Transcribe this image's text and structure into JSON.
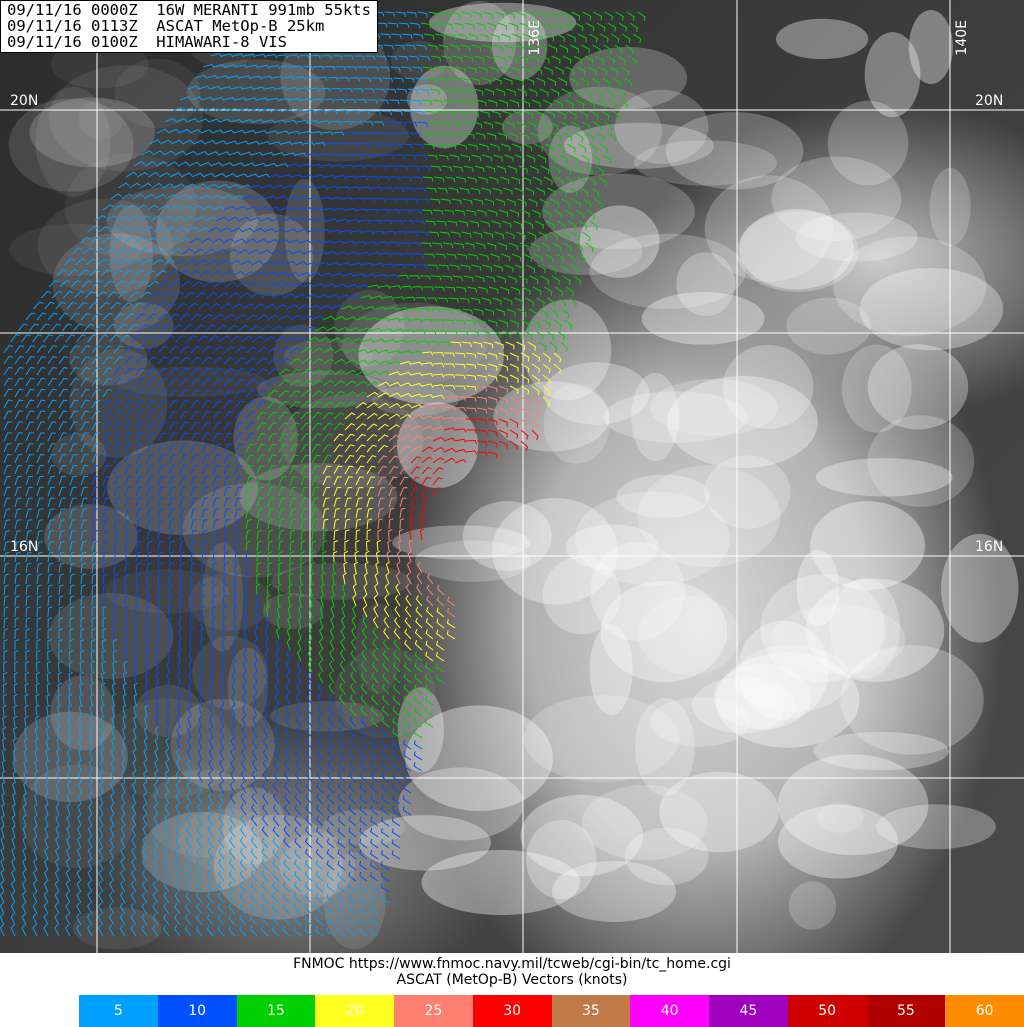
{
  "header": {
    "lines": [
      "09/11/16 0000Z  16W MERANTI 991mb 55kts",
      "09/11/16 0113Z  ASCAT MetOp-B 25km",
      "09/11/16 0100Z  HIMAWARI-8 VIS"
    ]
  },
  "grid": {
    "lat_labels": [
      "20N",
      "20N",
      "16N",
      "16N"
    ],
    "lon_labels": [
      "136E",
      "140E"
    ]
  },
  "footer": {
    "source": "FNMOC https://www.fnmoc.navy.mil/tcweb/cgi-bin/tc_home.cgi",
    "legend_title": "ASCAT (MetOp-B) Vectors (knots)"
  },
  "legend": [
    {
      "label": "5",
      "color": "#00a0ff"
    },
    {
      "label": "10",
      "color": "#0050ff"
    },
    {
      "label": "15",
      "color": "#00d000"
    },
    {
      "label": "20",
      "color": "#ffff20"
    },
    {
      "label": "25",
      "color": "#ff8070"
    },
    {
      "label": "30",
      "color": "#ff0000"
    },
    {
      "label": "35",
      "color": "#c07a48"
    },
    {
      "label": "40",
      "color": "#ff00ff"
    },
    {
      "label": "45",
      "color": "#a000c0"
    },
    {
      "label": "50",
      "color": "#d00000"
    },
    {
      "label": "55",
      "color": "#b00000"
    },
    {
      "label": "60",
      "color": "#ff8c00"
    }
  ]
}
